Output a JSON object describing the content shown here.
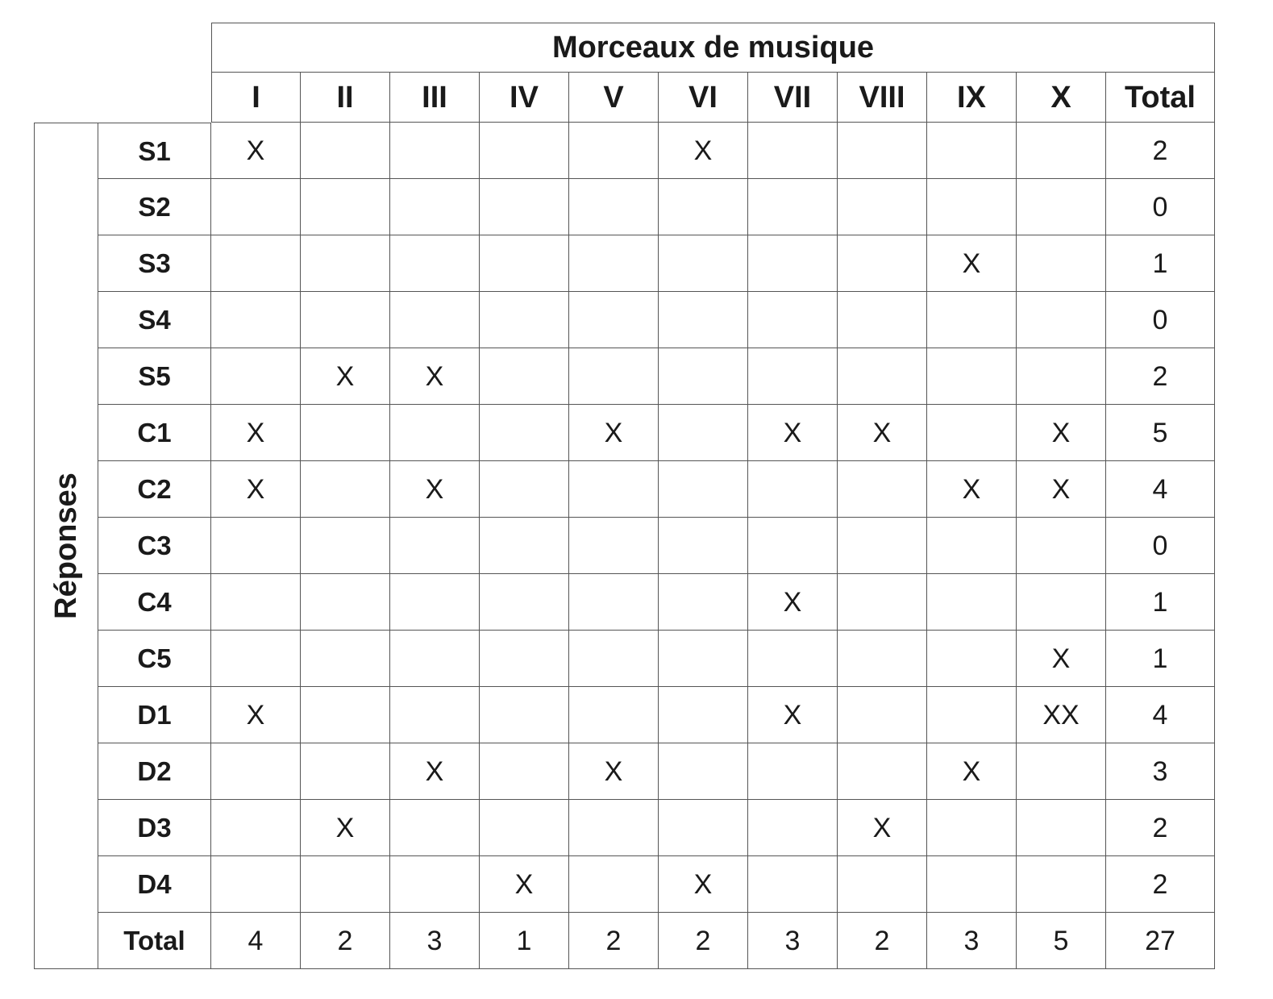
{
  "table": {
    "title": "Morceaux de musique",
    "side_label": "Réponses",
    "columns": [
      "I",
      "II",
      "III",
      "IV",
      "V",
      "VI",
      "VII",
      "VIII",
      "IX",
      "X",
      "Total"
    ],
    "rows": [
      {
        "label": "S1",
        "cells": [
          "X",
          "",
          "",
          "",
          "",
          "X",
          "",
          "",
          "",
          "",
          "2"
        ]
      },
      {
        "label": "S2",
        "cells": [
          "",
          "",
          "",
          "",
          "",
          "",
          "",
          "",
          "",
          "",
          "0"
        ]
      },
      {
        "label": "S3",
        "cells": [
          "",
          "",
          "",
          "",
          "",
          "",
          "",
          "",
          "X",
          "",
          "1"
        ]
      },
      {
        "label": "S4",
        "cells": [
          "",
          "",
          "",
          "",
          "",
          "",
          "",
          "",
          "",
          "",
          "0"
        ]
      },
      {
        "label": "S5",
        "cells": [
          "",
          "X",
          "X",
          "",
          "",
          "",
          "",
          "",
          "",
          "",
          "2"
        ]
      },
      {
        "label": "C1",
        "cells": [
          "X",
          "",
          "",
          "",
          "X",
          "",
          "X",
          "X",
          "",
          "X",
          "5"
        ]
      },
      {
        "label": "C2",
        "cells": [
          "X",
          "",
          "X",
          "",
          "",
          "",
          "",
          "",
          "X",
          "X",
          "4"
        ]
      },
      {
        "label": "C3",
        "cells": [
          "",
          "",
          "",
          "",
          "",
          "",
          "",
          "",
          "",
          "",
          "0"
        ]
      },
      {
        "label": "C4",
        "cells": [
          "",
          "",
          "",
          "",
          "",
          "",
          "X",
          "",
          "",
          "",
          "1"
        ]
      },
      {
        "label": "C5",
        "cells": [
          "",
          "",
          "",
          "",
          "",
          "",
          "",
          "",
          "",
          "X",
          "1"
        ]
      },
      {
        "label": "D1",
        "cells": [
          "X",
          "",
          "",
          "",
          "",
          "",
          "X",
          "",
          "",
          "XX",
          "4"
        ]
      },
      {
        "label": "D2",
        "cells": [
          "",
          "",
          "X",
          "",
          "X",
          "",
          "",
          "",
          "X",
          "",
          "3"
        ]
      },
      {
        "label": "D3",
        "cells": [
          "",
          "X",
          "",
          "",
          "",
          "",
          "",
          "X",
          "",
          "",
          "2"
        ]
      },
      {
        "label": "D4",
        "cells": [
          "",
          "",
          "",
          "X",
          "",
          "X",
          "",
          "",
          "",
          "",
          "2"
        ]
      },
      {
        "label": "Total",
        "cells": [
          "4",
          "2",
          "3",
          "1",
          "2",
          "2",
          "3",
          "2",
          "3",
          "5",
          "27"
        ]
      }
    ]
  }
}
